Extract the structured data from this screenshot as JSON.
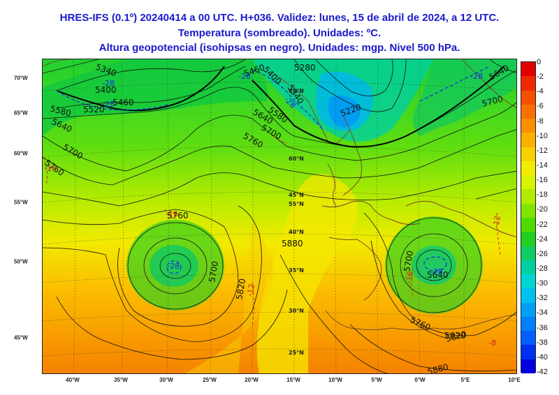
{
  "title": {
    "line1": "HRES-IFS (0.1º) 20240414 a 00 UTC. H+036. Validez: lunes, 15 de abril de 2024, a 12 UTC.",
    "line2": "Temperatura (sombreado). Unidades: ºC.",
    "line3": "Altura geopotencial (isohipsas en negro). Unidades: mgp. Nivel 500 hPa."
  },
  "longitude_labels": [
    "40°W",
    "35°W",
    "30°W",
    "25°W",
    "20°W",
    "15°W",
    "10°W",
    "5°W",
    "0°W",
    "5°E",
    "10°E"
  ],
  "latitude_labels": [
    "70°W",
    "65°W",
    "60°W",
    "55°W",
    "50°W",
    "45°W"
  ],
  "inner_latitude_labels": [
    "65°N",
    "60°N",
    "55°N",
    "45°N",
    "40°N",
    "35°N",
    "30°N",
    "25°N"
  ],
  "contour_labels": [
    "5340",
    "5400",
    "5460",
    "5520",
    "5580",
    "5640",
    "5700",
    "5760",
    "5760",
    "5700",
    "5820",
    "5880",
    "5280",
    "5220",
    "5340",
    "5400",
    "5460",
    "5580",
    "5640",
    "5700",
    "5760",
    "5640",
    "5700",
    "5760",
    "5820",
    "5880",
    "5640",
    "5700",
    "5820"
  ],
  "temperature_labels": [
    "-28",
    "-28",
    "-28",
    "-28",
    "-28",
    "-16",
    "-16",
    "-12",
    "-16",
    "-12",
    "-8",
    "-28",
    "-28"
  ],
  "colorbar": {
    "labels": [
      "0",
      "-2",
      "-4",
      "-6",
      "-8",
      "-10",
      "-12",
      "-14",
      "-16",
      "-18",
      "-20",
      "-22",
      "-24",
      "-26",
      "-28",
      "-30",
      "-32",
      "-34",
      "-36",
      "-38",
      "-40",
      "-42"
    ],
    "colors": [
      "#e00000",
      "#f02a00",
      "#f55000",
      "#f87000",
      "#fa9000",
      "#fbb000",
      "#f8d000",
      "#f2ec00",
      "#d8f200",
      "#b0ec00",
      "#80e400",
      "#50dc00",
      "#20d020",
      "#10cc60",
      "#00d0a0",
      "#00d4d0",
      "#00c0f0",
      "#00a0f8",
      "#0080ff",
      "#0060ff",
      "#0030f0",
      "#0000e0"
    ]
  }
}
